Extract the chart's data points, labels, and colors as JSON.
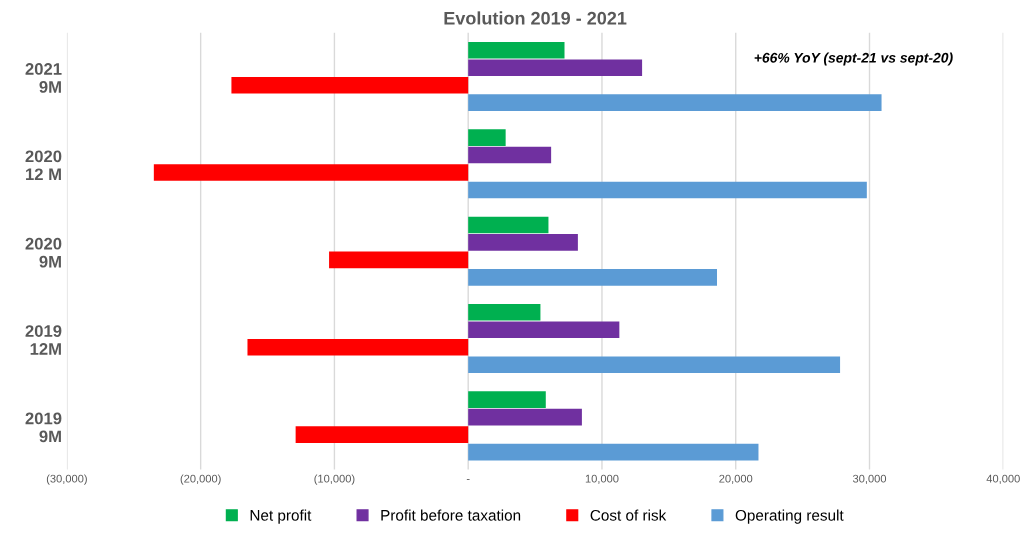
{
  "chart_data": {
    "type": "bar",
    "orientation": "horizontal",
    "title": "Evolution 2019 - 2021",
    "categories": [
      "2021\n9M",
      "2020\n12 M",
      "2020\n9M",
      "2019\n12M",
      "2019\n9M"
    ],
    "series": [
      {
        "name": "Net profit",
        "color": "#00b050",
        "values": [
          7200,
          2800,
          6000,
          5400,
          5800
        ]
      },
      {
        "name": "Profit before taxation",
        "color": "#7030a0",
        "values": [
          13000,
          6200,
          8200,
          11300,
          8500
        ]
      },
      {
        "name": "Cost of risk",
        "color": "#ff0000",
        "values": [
          -17700,
          -23500,
          -10400,
          -16500,
          -12900
        ]
      },
      {
        "name": "Operating result",
        "color": "#5b9bd5",
        "values": [
          30900,
          29800,
          18600,
          27800,
          21700
        ]
      }
    ],
    "xlim": [
      -30000,
      40000
    ],
    "xticks": [
      {
        "value": -30000,
        "label": "(30,000)"
      },
      {
        "value": -20000,
        "label": "(20,000)"
      },
      {
        "value": -10000,
        "label": "(10,000)"
      },
      {
        "value": 0,
        "label": "-"
      },
      {
        "value": 10000,
        "label": "10,000"
      },
      {
        "value": 20000,
        "label": "20,000"
      },
      {
        "value": 30000,
        "label": "30,000"
      },
      {
        "value": 40000,
        "label": "40,000"
      }
    ],
    "grid": "x",
    "legend": "bottom",
    "annotations": [
      "+66% YoY (sept-21 vs sept-20)"
    ]
  }
}
